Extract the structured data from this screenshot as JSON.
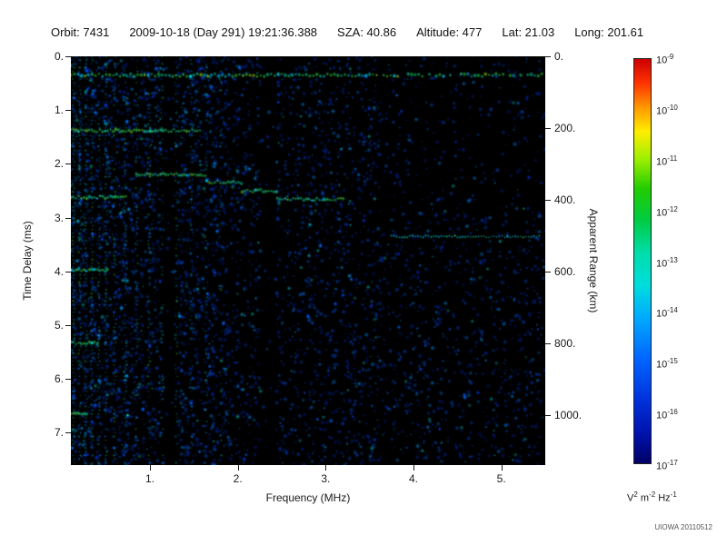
{
  "header": {
    "items": [
      {
        "text": "Orbit: 7431"
      },
      {
        "text": "2009-10-18 (Day 291) 19:21:36.388"
      },
      {
        "text": "SZA:  40.86"
      },
      {
        "text": "Altitude:    477"
      },
      {
        "text": "Lat:  21.03"
      },
      {
        "text": "Long: 201.61"
      }
    ]
  },
  "watermark": "UIOWA 20110512",
  "chart_data": {
    "type": "heatmap",
    "description": "Radar sounder ionogram spectrogram: signal intensity vs frequency and time delay, black background with blue noise speckle, green echo traces",
    "x_label": "Frequency (MHz)",
    "x_range": [
      0.1,
      5.5
    ],
    "x_ticks": [
      1,
      2,
      3,
      4,
      5
    ],
    "x_tick_labels": [
      "1.",
      "2.",
      "3.",
      "4.",
      "5."
    ],
    "y_left_label": "Time Delay (ms)",
    "y_range": [
      0,
      7.6
    ],
    "y_ticks": [
      0,
      1,
      2,
      3,
      4,
      5,
      6,
      7
    ],
    "y_tick_labels": [
      "0.",
      "1.",
      "2.",
      "3.",
      "4.",
      "5.",
      "6.",
      "7."
    ],
    "y_right_label": "Apparent Range (km)",
    "km_per_ms": 150,
    "right_ticks_km": [
      0,
      200,
      400,
      600,
      800,
      1000
    ],
    "right_tick_labels": [
      "0.",
      "200.",
      "400.",
      "600.",
      "800.",
      "1000."
    ],
    "colorbar": {
      "scale_top": "1e-9",
      "scale_bottom": "1e-17",
      "ticks": [
        {
          "base": "10",
          "exp": "-9"
        },
        {
          "base": "10",
          "exp": "-10"
        },
        {
          "base": "10",
          "exp": "-11"
        },
        {
          "base": "10",
          "exp": "-12"
        },
        {
          "base": "10",
          "exp": "-13"
        },
        {
          "base": "10",
          "exp": "-14"
        },
        {
          "base": "10",
          "exp": "-15"
        },
        {
          "base": "10",
          "exp": "-16"
        },
        {
          "base": "10",
          "exp": "-17"
        }
      ],
      "gradient": [
        [
          "0%",
          "#cc0000"
        ],
        [
          "6%",
          "#ff3300"
        ],
        [
          "12%",
          "#ff9900"
        ],
        [
          "18%",
          "#ffee00"
        ],
        [
          "25%",
          "#99ee00"
        ],
        [
          "32%",
          "#22cc00"
        ],
        [
          "40%",
          "#00cc44"
        ],
        [
          "48%",
          "#00ddaa"
        ],
        [
          "56%",
          "#00dddd"
        ],
        [
          "64%",
          "#00aaff"
        ],
        [
          "74%",
          "#0066ff"
        ],
        [
          "84%",
          "#0033dd"
        ],
        [
          "93%",
          "#0011aa"
        ],
        [
          "100%",
          "#000066"
        ]
      ],
      "units": {
        "v": "V",
        "v_exp": "2",
        "m": "m",
        "m_exp": "-2",
        "hz": "Hz",
        "hz_exp": "-1"
      }
    },
    "palette": {
      "background": "#000000",
      "noise": [
        "#0028b0",
        "#0050e0",
        "#0090ff",
        "#00d8d0"
      ],
      "harmonic_line": [
        "#00a0e0",
        "#00d8c0",
        "#40e060"
      ],
      "transmit_band": [
        "#30d040",
        "#00e0a0",
        "#b0e800",
        "#00c0ff"
      ],
      "echo_trace": [
        "#30d860",
        "#00d8b0",
        "#80e020"
      ],
      "cyclotron": [
        "#40e040",
        "#00e0c0"
      ],
      "surface": [
        "#00c8e0",
        "#30d890"
      ]
    },
    "features": {
      "background_noise": {
        "count": 9000,
        "low_freq_limit": 1.9,
        "density_low_freq": 0.9,
        "mid_freq_limit": 3.6,
        "density_mid": 0.55,
        "sparse_time_limit": 2.9,
        "density_high_sparse": 0.2,
        "density_high_lower": 0.38
      },
      "dark_gaps_mhz": [
        1.22,
        2.35
      ],
      "harmonic_lines": [
        {
          "f": 0.13,
          "s": 0.95
        },
        {
          "f": 0.2,
          "s": 0.75
        },
        {
          "f": 0.27,
          "s": 0.7
        },
        {
          "f": 0.34,
          "s": 0.75
        },
        {
          "f": 0.42,
          "s": 0.6
        },
        {
          "f": 0.5,
          "s": 0.65
        },
        {
          "f": 0.6,
          "s": 0.55
        },
        {
          "f": 0.72,
          "s": 0.6
        },
        {
          "f": 0.85,
          "s": 0.5
        },
        {
          "f": 0.99,
          "s": 0.5
        },
        {
          "f": 1.14,
          "s": 0.45
        },
        {
          "f": 1.3,
          "s": 0.5
        },
        {
          "f": 1.47,
          "s": 0.45
        },
        {
          "f": 1.64,
          "s": 0.4
        },
        {
          "f": 1.8,
          "s": 0.35
        }
      ],
      "transmit_band": {
        "t": 0.35,
        "f_range": [
          0.1,
          5.5
        ]
      },
      "echo_trace": [
        {
          "f": [
            0.1,
            1.6
          ],
          "t": 1.38
        },
        {
          "f": [
            0.85,
            1.65
          ],
          "t": 2.2
        },
        {
          "f": [
            1.65,
            2.05
          ],
          "t": 2.34
        },
        {
          "f": [
            2.05,
            2.45
          ],
          "t": 2.5
        },
        {
          "f": [
            2.45,
            3.2
          ],
          "t": 2.66
        }
      ],
      "cyclotron_echoes": [
        {
          "t": 2.62,
          "f_max": 0.75
        },
        {
          "t": 3.98,
          "f_max": 0.55
        },
        {
          "t": 5.33,
          "f_max": 0.42
        },
        {
          "t": 6.65,
          "f_max": 0.3
        }
      ],
      "surface_reflection": {
        "t": 3.35,
        "f_range": [
          3.75,
          5.45
        ]
      }
    }
  }
}
